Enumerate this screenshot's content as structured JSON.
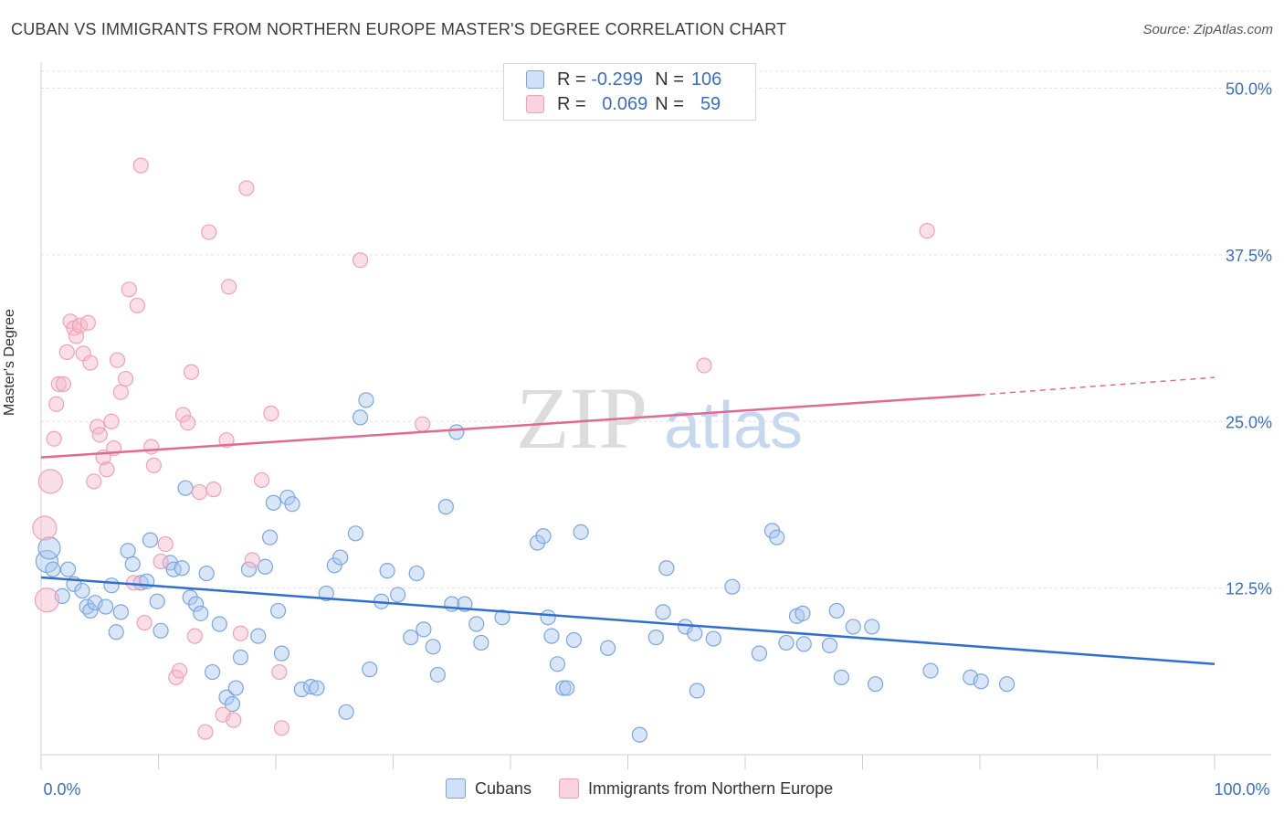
{
  "header": {
    "title": "CUBAN VS IMMIGRANTS FROM NORTHERN EUROPE MASTER'S DEGREE CORRELATION CHART",
    "source": "Source: ZipAtlas.com"
  },
  "watermark": {
    "zip": "ZIP",
    "atlas": "atlas"
  },
  "legend_stats": [
    {
      "r_label": "R =",
      "r": "-0.299",
      "n_label": "N =",
      "n": "106",
      "color": "#a9c8f0"
    },
    {
      "r_label": "R =",
      "r": "0.069",
      "n_label": "N =",
      "n": "59",
      "color": "#f7b8c8"
    }
  ],
  "chart_data": {
    "type": "scatter",
    "title": "CUBAN VS IMMIGRANTS FROM NORTHERN EUROPE MASTER'S DEGREE CORRELATION CHART",
    "xlabel": "",
    "ylabel": "Master's Degree",
    "xlim": [
      0,
      100
    ],
    "ylim": [
      0,
      50
    ],
    "x_tick_labels": [
      "0.0%",
      "100.0%"
    ],
    "y_ticks": [
      12.5,
      25.0,
      37.5,
      50.0
    ],
    "y_tick_labels": [
      "12.5%",
      "25.0%",
      "37.5%",
      "50.0%"
    ],
    "grid": true,
    "legend_position": "top-center",
    "series": [
      {
        "name": "Cubans",
        "color": "#7aa6e0",
        "trend": {
          "x": [
            0,
            100
          ],
          "y": [
            13.3,
            6.8
          ],
          "color": "#2f6fd0"
        },
        "points": [
          [
            0.5,
            14.5
          ],
          [
            0.7,
            15.5
          ],
          [
            1,
            13.9
          ],
          [
            1.8,
            11.9
          ],
          [
            2.3,
            13.9
          ],
          [
            2.8,
            12.8
          ],
          [
            3.5,
            12.3
          ],
          [
            3.9,
            11.1
          ],
          [
            4.2,
            10.8
          ],
          [
            4.6,
            11.4
          ],
          [
            5.5,
            11.1
          ],
          [
            6,
            12.7
          ],
          [
            6.4,
            9.2
          ],
          [
            6.8,
            10.7
          ],
          [
            7.4,
            15.3
          ],
          [
            7.8,
            14.3
          ],
          [
            8.5,
            12.9
          ],
          [
            9,
            13
          ],
          [
            9.3,
            16.1
          ],
          [
            9.9,
            11.5
          ],
          [
            10.2,
            9.3
          ],
          [
            11,
            14.4
          ],
          [
            11.3,
            13.9
          ],
          [
            12,
            14
          ],
          [
            12.3,
            20
          ],
          [
            12.7,
            11.8
          ],
          [
            13.2,
            11.3
          ],
          [
            13.6,
            10.6
          ],
          [
            14.1,
            13.6
          ],
          [
            14.6,
            6.2
          ],
          [
            15.2,
            9.8
          ],
          [
            15.8,
            4.3
          ],
          [
            16.3,
            3.8
          ],
          [
            16.6,
            5
          ],
          [
            17,
            7.3
          ],
          [
            17.7,
            13.9
          ],
          [
            18.5,
            8.9
          ],
          [
            19.1,
            14.1
          ],
          [
            19.5,
            16.3
          ],
          [
            19.8,
            18.9
          ],
          [
            20.2,
            10.8
          ],
          [
            20.5,
            7.6
          ],
          [
            21,
            19.3
          ],
          [
            21.4,
            18.8
          ],
          [
            22.2,
            4.9
          ],
          [
            23,
            5.1
          ],
          [
            23.5,
            5
          ],
          [
            24.3,
            12.1
          ],
          [
            25,
            14.2
          ],
          [
            25.5,
            14.8
          ],
          [
            26,
            3.2
          ],
          [
            26.8,
            16.6
          ],
          [
            27.2,
            25.3
          ],
          [
            27.7,
            26.6
          ],
          [
            28,
            6.4
          ],
          [
            29,
            11.5
          ],
          [
            29.5,
            13.8
          ],
          [
            30.4,
            12
          ],
          [
            31.5,
            8.8
          ],
          [
            32,
            13.6
          ],
          [
            32.6,
            9.4
          ],
          [
            33.4,
            8.1
          ],
          [
            33.8,
            6
          ],
          [
            34.5,
            18.6
          ],
          [
            35,
            11.3
          ],
          [
            35.4,
            24.2
          ],
          [
            36.1,
            11.3
          ],
          [
            37.1,
            9.8
          ],
          [
            37.5,
            8.4
          ],
          [
            39.3,
            10.3
          ],
          [
            42.3,
            15.9
          ],
          [
            42.8,
            16.4
          ],
          [
            43.2,
            10.3
          ],
          [
            43.5,
            8.9
          ],
          [
            44,
            6.8
          ],
          [
            44.5,
            5
          ],
          [
            44.8,
            5
          ],
          [
            45.4,
            8.6
          ],
          [
            46,
            16.7
          ],
          [
            48.3,
            8
          ],
          [
            51,
            1.5
          ],
          [
            52.4,
            8.8
          ],
          [
            53,
            10.7
          ],
          [
            53.3,
            14
          ],
          [
            54.9,
            9.6
          ],
          [
            55.7,
            9.1
          ],
          [
            55.9,
            4.8
          ],
          [
            57.3,
            8.7
          ],
          [
            58.9,
            12.6
          ],
          [
            61.2,
            7.6
          ],
          [
            62.3,
            16.8
          ],
          [
            62.7,
            16.3
          ],
          [
            63.5,
            8.4
          ],
          [
            64.4,
            10.4
          ],
          [
            64.9,
            10.6
          ],
          [
            65,
            8.3
          ],
          [
            67.2,
            8.2
          ],
          [
            67.8,
            10.8
          ],
          [
            68.2,
            5.8
          ],
          [
            69.2,
            9.6
          ],
          [
            70.8,
            9.6
          ],
          [
            71.1,
            5.3
          ],
          [
            75.8,
            6.3
          ],
          [
            79.2,
            5.8
          ],
          [
            80.1,
            5.5
          ],
          [
            82.3,
            5.3
          ]
        ]
      },
      {
        "name": "Immigrants from Northern Europe",
        "color": "#f2a0b8",
        "trend": {
          "x": [
            0,
            80,
            100
          ],
          "y": [
            22.3,
            27.0,
            28.3
          ],
          "color": "#e06a92"
        },
        "points": [
          [
            0.3,
            17
          ],
          [
            0.5,
            11.6
          ],
          [
            0.8,
            20.5
          ],
          [
            1.1,
            23.7
          ],
          [
            1.3,
            26.3
          ],
          [
            1.5,
            27.8
          ],
          [
            1.9,
            27.8
          ],
          [
            2.2,
            30.2
          ],
          [
            2.5,
            32.5
          ],
          [
            2.8,
            32
          ],
          [
            3,
            31.4
          ],
          [
            3.3,
            32.2
          ],
          [
            3.6,
            30.1
          ],
          [
            4,
            32.4
          ],
          [
            4.2,
            29.4
          ],
          [
            4.5,
            20.5
          ],
          [
            4.8,
            24.6
          ],
          [
            5,
            24
          ],
          [
            5.3,
            22.3
          ],
          [
            5.6,
            21.4
          ],
          [
            6,
            25
          ],
          [
            6.2,
            23
          ],
          [
            6.5,
            29.6
          ],
          [
            6.8,
            27.2
          ],
          [
            7.2,
            28.2
          ],
          [
            7.5,
            34.9
          ],
          [
            7.9,
            12.9
          ],
          [
            8.2,
            33.7
          ],
          [
            8.5,
            44.2
          ],
          [
            8.8,
            9.9
          ],
          [
            9.4,
            23.1
          ],
          [
            9.6,
            21.7
          ],
          [
            10.2,
            14.5
          ],
          [
            10.6,
            15.8
          ],
          [
            11.5,
            5.8
          ],
          [
            11.8,
            6.3
          ],
          [
            12.1,
            25.5
          ],
          [
            12.5,
            24.9
          ],
          [
            12.8,
            28.7
          ],
          [
            13.1,
            8.9
          ],
          [
            13.5,
            19.7
          ],
          [
            14,
            1.7
          ],
          [
            14.3,
            39.2
          ],
          [
            14.7,
            19.9
          ],
          [
            15.5,
            3
          ],
          [
            15.8,
            23.6
          ],
          [
            16,
            35.1
          ],
          [
            16.4,
            2.6
          ],
          [
            17,
            9.1
          ],
          [
            17.5,
            42.5
          ],
          [
            18,
            14.6
          ],
          [
            18.8,
            20.6
          ],
          [
            19.6,
            25.6
          ],
          [
            20.3,
            6.2
          ],
          [
            20.5,
            2
          ],
          [
            27.2,
            37.1
          ],
          [
            32.5,
            24.8
          ],
          [
            56.5,
            29.2
          ],
          [
            75.5,
            39.3
          ]
        ]
      }
    ]
  },
  "bottom_legend": [
    {
      "label": "Cubans",
      "color": "#a9c8f0"
    },
    {
      "label": "Immigrants from Northern Europe",
      "color": "#f7b8c8"
    }
  ]
}
